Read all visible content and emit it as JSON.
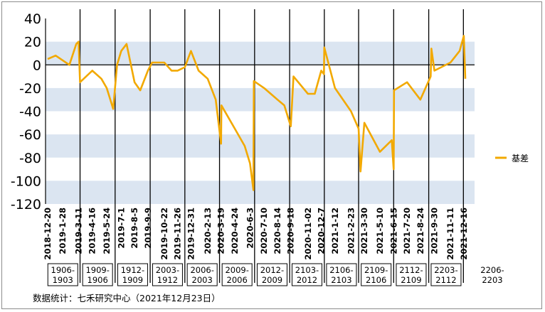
{
  "chart_data": {
    "type": "line",
    "title": "",
    "xlabel": "",
    "ylabel": "",
    "ylim": [
      -120,
      40
    ],
    "yticks": [
      40,
      20,
      0,
      -20,
      -40,
      -60,
      -80,
      -100,
      -120
    ],
    "grid": "alternating horizontal bands",
    "legend_position": "right",
    "series": [
      {
        "name": "基差",
        "color": "#f2a900",
        "x": [
          "2018-12-20",
          "2019-01-10",
          "2019-02-15",
          "2019-03-05",
          "2019-03-11",
          "2019-03-15",
          "2019-04-16",
          "2019-05-10",
          "2019-05-24",
          "2019-06-10",
          "2019-06-20",
          "2019-07-01",
          "2019-07-15",
          "2019-08-05",
          "2019-08-20",
          "2019-09-09",
          "2019-09-20",
          "2019-10-22",
          "2019-11-10",
          "2019-11-26",
          "2019-12-15",
          "2019-12-31",
          "2020-01-20",
          "2020-02-13",
          "2020-03-05",
          "2020-03-19",
          "2020-03-20",
          "2020-04-24",
          "2020-05-20",
          "2020-06-03",
          "2020-06-12",
          "2020-06-13",
          "2020-07-10",
          "2020-08-14",
          "2020-09-01",
          "2020-09-18",
          "2020-09-25",
          "2020-11-02",
          "2020-11-20",
          "2020-12-07",
          "2020-12-14",
          "2020-12-15",
          "2021-01-12",
          "2021-02-23",
          "2021-03-15",
          "2021-03-20",
          "2021-03-30",
          "2021-05-10",
          "2021-06-10",
          "2021-06-15",
          "2021-06-16",
          "2021-07-20",
          "2021-08-24",
          "2021-09-20",
          "2021-09-22",
          "2021-09-30",
          "2021-11-11",
          "2021-12-05",
          "2021-12-16",
          "2021-12-20"
        ],
        "values": [
          5,
          8,
          0,
          18,
          20,
          -15,
          -5,
          -12,
          -20,
          -38,
          0,
          12,
          18,
          -15,
          -22,
          -5,
          2,
          2,
          -5,
          -5,
          -2,
          12,
          -5,
          -12,
          -30,
          -68,
          -35,
          -55,
          -70,
          -85,
          -108,
          -14,
          -20,
          -30,
          -35,
          -53,
          -10,
          -25,
          -25,
          -5,
          -8,
          15,
          -20,
          -40,
          -55,
          -92,
          -50,
          -75,
          -65,
          -90,
          -22,
          -15,
          -30,
          -10,
          14,
          -5,
          2,
          12,
          25,
          -12
        ]
      }
    ],
    "x_ticks": [
      "2018-12-20",
      "2019-1-28",
      "2019-3-11",
      "2019-4-16",
      "2019-5-24",
      "2019-7-1",
      "2019-8-5",
      "2019-9-9",
      "2019-10-22",
      "2019-11-26",
      "2019-12-31",
      "2020-2-13",
      "2020-3-19",
      "2020-4-24",
      "2020-6-3",
      "2020-7-10",
      "2020-8-14",
      "2020-9-18",
      "2020-11-02",
      "2020-12-7",
      "2021-1-12",
      "2021-2-23",
      "2021-3-30",
      "2021-5-10",
      "2021-6-15",
      "2021-7-20",
      "2021-8-24",
      "2021-9-30",
      "2021-11-11",
      "2021-12-16"
    ],
    "contract_switch_dates": [
      "2019-03-15",
      "2019-06-15",
      "2019-09-15",
      "2019-12-15",
      "2020-03-15",
      "2020-06-15",
      "2020-09-15",
      "2020-12-15",
      "2021-03-15",
      "2021-06-15",
      "2021-09-15",
      "2021-12-15"
    ],
    "contracts": [
      "1906-1903",
      "1909-1906",
      "1912-1909",
      "2003-1912",
      "2006-2003",
      "2009-2006",
      "2012-2009",
      "2103-2012",
      "2106-2103",
      "2109-2106",
      "2112-2109",
      "2203-2112",
      "2206-2203"
    ]
  },
  "source_note": "数据统计：七禾研究中心（2021年12月23日）"
}
